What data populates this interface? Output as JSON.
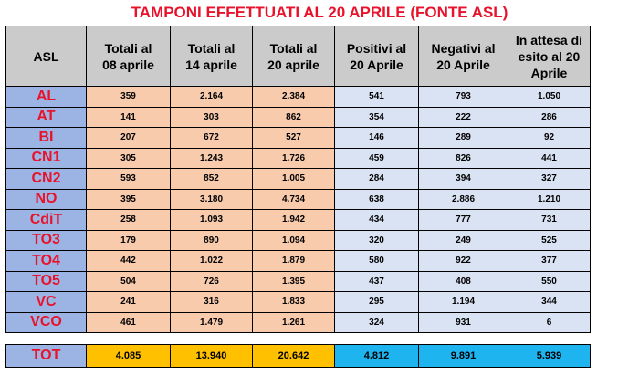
{
  "chart_data": {
    "type": "table",
    "title": "TAMPONI EFFETTUATI AL 20 APRILE (FONTE ASL)",
    "columns": [
      {
        "lines": [
          "ASL"
        ]
      },
      {
        "lines": [
          "Totali al",
          "08 aprile"
        ]
      },
      {
        "lines": [
          "Totali al",
          "14 aprile"
        ]
      },
      {
        "lines": [
          "Totali al",
          "20 aprile"
        ]
      },
      {
        "lines": [
          "Positivi al",
          "20 Aprile"
        ]
      },
      {
        "lines": [
          "Negativi al",
          "20 Aprile"
        ]
      },
      {
        "lines": [
          "In attesa  di",
          "esito al 20",
          "Aprile"
        ]
      }
    ],
    "rows": [
      {
        "asl": "AL",
        "values": [
          "359",
          "2.164",
          "2.384",
          "541",
          "793",
          "1.050"
        ]
      },
      {
        "asl": "AT",
        "values": [
          "141",
          "303",
          "862",
          "354",
          "222",
          "286"
        ]
      },
      {
        "asl": "BI",
        "values": [
          "207",
          "672",
          "527",
          "146",
          "289",
          "92"
        ]
      },
      {
        "asl": "CN1",
        "values": [
          "305",
          "1.243",
          "1.726",
          "459",
          "826",
          "441"
        ]
      },
      {
        "asl": "CN2",
        "values": [
          "593",
          "852",
          "1.005",
          "284",
          "394",
          "327"
        ]
      },
      {
        "asl": "NO",
        "values": [
          "395",
          "3.180",
          "4.734",
          "638",
          "2.886",
          "1.210"
        ]
      },
      {
        "asl": "CdiT",
        "values": [
          "258",
          "1.093",
          "1.942",
          "434",
          "777",
          "731"
        ]
      },
      {
        "asl": "TO3",
        "values": [
          "179",
          "890",
          "1.094",
          "320",
          "249",
          "525"
        ]
      },
      {
        "asl": "TO4",
        "values": [
          "442",
          "1.022",
          "1.879",
          "580",
          "922",
          "377"
        ]
      },
      {
        "asl": "TO5",
        "values": [
          "504",
          "726",
          "1.395",
          "437",
          "408",
          "550"
        ]
      },
      {
        "asl": "VC",
        "values": [
          "241",
          "316",
          "1.833",
          "295",
          "1.194",
          "344"
        ]
      },
      {
        "asl": "VCO",
        "values": [
          "461",
          "1.479",
          "1.261",
          "324",
          "931",
          "6"
        ]
      }
    ],
    "total": {
      "label": "TOT",
      "values": [
        "4.085",
        "13.940",
        "20.642",
        "4.812",
        "9.891",
        "5.939"
      ]
    }
  },
  "colors": {
    "title": "#e8132b",
    "header_bg": "#cbcbcb",
    "asl_bg": "#9cb4e3",
    "peach": "#f8cbad",
    "light_blue": "#dae3f3",
    "gold": "#ffc000",
    "cyan": "#1eb4f0"
  }
}
